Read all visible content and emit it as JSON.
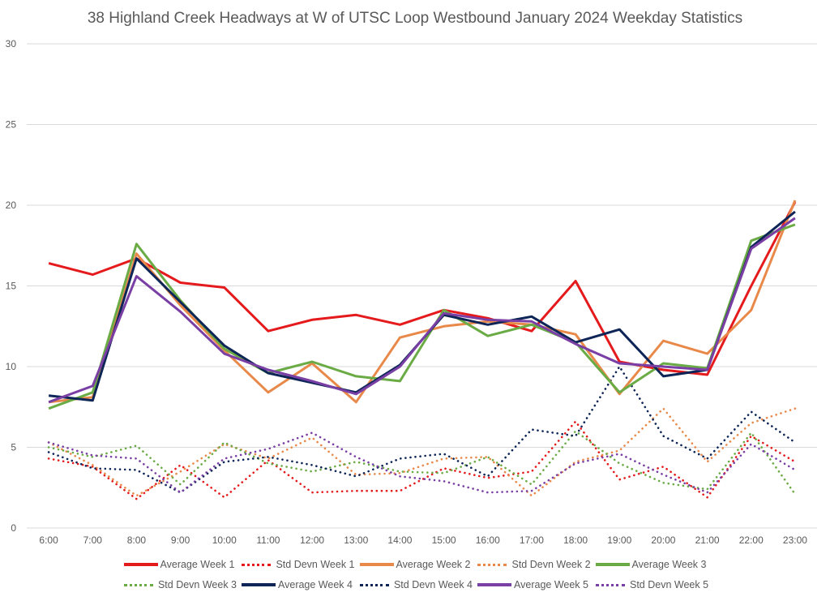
{
  "chart_data": {
    "type": "line",
    "title": "38 Highland Creek Headways at W of UTSC Loop Westbound January 2024 Weekday Statistics",
    "xlabel": "",
    "ylabel": "",
    "ylim": [
      0,
      30
    ],
    "yticks": [
      "0",
      "5",
      "10",
      "15",
      "20",
      "25",
      "30"
    ],
    "grid": true,
    "legend_position": "bottom",
    "categories": [
      "6:00",
      "7:00",
      "8:00",
      "9:00",
      "10:00",
      "11:00",
      "12:00",
      "13:00",
      "14:00",
      "15:00",
      "16:00",
      "17:00",
      "18:00",
      "19:00",
      "20:00",
      "21:00",
      "22:00",
      "23:00"
    ],
    "series": [
      {
        "name": "Average Week 1",
        "color": "#E41A1C",
        "style": "solid",
        "values": [
          16.4,
          15.7,
          16.7,
          15.2,
          14.9,
          12.2,
          12.9,
          13.2,
          12.6,
          13.5,
          13.0,
          12.2,
          15.3,
          10.3,
          9.8,
          9.5,
          15.0,
          20.2
        ]
      },
      {
        "name": "Std Devn Week 1",
        "color": "#E41A1C",
        "style": "dotted",
        "values": [
          4.3,
          3.8,
          1.8,
          3.9,
          1.9,
          4.2,
          2.2,
          2.3,
          2.3,
          3.7,
          3.1,
          3.5,
          6.6,
          3.0,
          3.8,
          1.9,
          5.7,
          4.1
        ]
      },
      {
        "name": "Average Week 2",
        "color": "#E8894A",
        "style": "solid",
        "values": [
          7.8,
          8.1,
          17.0,
          13.8,
          11.0,
          8.4,
          10.2,
          7.8,
          11.8,
          12.5,
          12.8,
          12.6,
          12.0,
          8.3,
          11.6,
          10.8,
          13.5,
          20.3
        ]
      },
      {
        "name": "Std Devn Week 2",
        "color": "#E8894A",
        "style": "dotted",
        "values": [
          5.3,
          3.9,
          2.0,
          3.5,
          5.2,
          4.3,
          5.6,
          3.3,
          3.4,
          4.3,
          4.4,
          2.0,
          4.1,
          4.8,
          7.4,
          4.1,
          6.5,
          7.4
        ]
      },
      {
        "name": "Average Week 3",
        "color": "#6AAB45",
        "style": "solid",
        "values": [
          7.4,
          8.4,
          17.6,
          14.1,
          11.1,
          9.6,
          10.3,
          9.4,
          9.1,
          13.5,
          11.9,
          12.6,
          11.5,
          8.4,
          10.2,
          9.9,
          17.8,
          18.8
        ]
      },
      {
        "name": "Std Devn Week 3",
        "color": "#6AAB45",
        "style": "dotted",
        "values": [
          5.0,
          4.4,
          5.1,
          2.7,
          5.3,
          4.0,
          3.5,
          4.1,
          3.5,
          3.4,
          4.4,
          2.7,
          6.0,
          4.0,
          2.8,
          2.4,
          5.9,
          2.1
        ]
      },
      {
        "name": "Average Week 4",
        "color": "#0E2557",
        "style": "solid",
        "values": [
          8.2,
          7.9,
          16.7,
          14.0,
          11.3,
          9.6,
          9.0,
          8.4,
          10.1,
          13.2,
          12.6,
          13.1,
          11.5,
          12.3,
          9.4,
          9.8,
          17.4,
          19.6
        ]
      },
      {
        "name": "Std Devn Week 4",
        "color": "#0E2557",
        "style": "dotted",
        "values": [
          4.7,
          3.7,
          3.6,
          2.2,
          4.1,
          4.4,
          3.9,
          3.2,
          4.3,
          4.6,
          3.2,
          6.1,
          5.7,
          10.0,
          5.7,
          4.3,
          7.2,
          5.3
        ]
      },
      {
        "name": "Average Week 5",
        "color": "#7A3FA5",
        "style": "solid",
        "values": [
          7.8,
          8.8,
          15.6,
          13.4,
          10.8,
          9.8,
          9.1,
          8.3,
          10.0,
          13.3,
          12.9,
          12.8,
          11.4,
          10.2,
          10.0,
          9.8,
          17.3,
          19.2
        ]
      },
      {
        "name": "Std Devn Week 5",
        "color": "#7A3FA5",
        "style": "dotted",
        "values": [
          5.3,
          4.5,
          4.3,
          2.2,
          4.3,
          4.9,
          5.9,
          4.4,
          3.2,
          2.9,
          2.2,
          2.3,
          4.0,
          4.6,
          3.3,
          2.2,
          5.2,
          3.6
        ]
      }
    ]
  }
}
